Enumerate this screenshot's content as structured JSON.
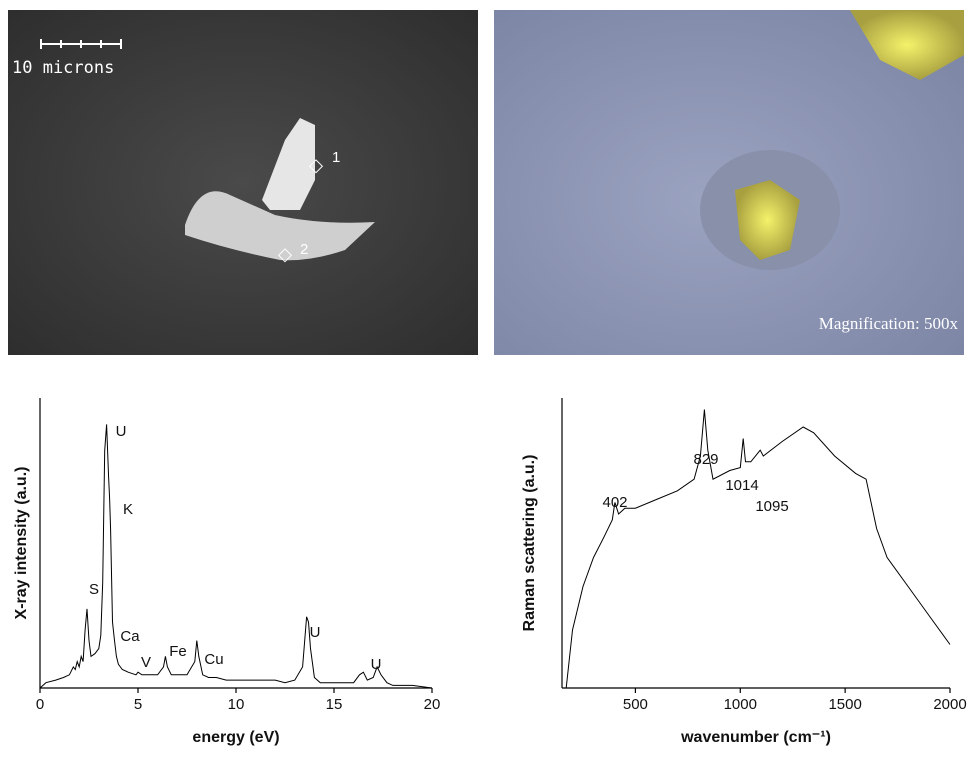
{
  "images": {
    "left": {
      "scale_label": "10 microns",
      "points": [
        "1",
        "2"
      ]
    },
    "right": {
      "caption": "Magnification: 500x"
    }
  },
  "chart_data": [
    {
      "type": "line",
      "y_label": "X-ray intensity (a.u.)",
      "x_label": "energy (eV)",
      "xlim": [
        0,
        20
      ],
      "xticks": [
        0,
        5,
        10,
        15,
        20
      ],
      "ylim": [
        0,
        110
      ],
      "color": "#000000",
      "annotations": [
        "U",
        "K",
        "S",
        "Ca",
        "V",
        "Fe",
        "Cu",
        "U",
        "U"
      ],
      "x": [
        0,
        0.3,
        0.8,
        1.2,
        1.5,
        1.7,
        1.8,
        1.9,
        2.0,
        2.1,
        2.2,
        2.3,
        2.4,
        2.5,
        2.6,
        2.8,
        3.0,
        3.1,
        3.2,
        3.3,
        3.4,
        3.5,
        3.55,
        3.6,
        3.7,
        3.8,
        3.9,
        4.0,
        4.2,
        4.5,
        4.9,
        5.0,
        5.2,
        5.6,
        6.0,
        6.3,
        6.4,
        6.5,
        6.7,
        7.0,
        7.5,
        7.9,
        8.0,
        8.1,
        8.3,
        8.6,
        9.0,
        9.5,
        10,
        11,
        11.5,
        12,
        12.5,
        13,
        13.4,
        13.6,
        13.7,
        13.8,
        14.0,
        14.3,
        15,
        16,
        16.3,
        16.5,
        16.7,
        17,
        17.2,
        17.4,
        17.7,
        18,
        19,
        20
      ],
      "values": [
        0,
        2,
        3,
        4,
        5,
        8,
        7,
        10,
        8,
        12,
        10,
        22,
        30,
        18,
        12,
        13,
        15,
        20,
        40,
        90,
        100,
        80,
        72,
        60,
        25,
        18,
        12,
        9,
        7,
        6,
        5,
        6,
        5,
        5,
        5,
        8,
        12,
        8,
        5,
        5,
        5,
        10,
        18,
        12,
        5,
        4,
        4,
        3,
        3,
        3,
        3,
        3,
        2,
        3,
        8,
        27,
        25,
        15,
        4,
        2,
        2,
        2,
        5,
        6,
        3,
        4,
        8,
        5,
        2,
        1,
        1,
        0
      ]
    },
    {
      "type": "line",
      "y_label": "Raman scattering (a.u.)",
      "x_label": "wavenumber (cm⁻¹)",
      "xlim": [
        150,
        2000
      ],
      "xticks": [
        500,
        1000,
        1500,
        2000
      ],
      "ylim": [
        0,
        100
      ],
      "color": "#000000",
      "annotations": [
        "402",
        "829",
        "1014",
        "1095"
      ],
      "x": [
        170,
        200,
        250,
        300,
        350,
        390,
        402,
        420,
        450,
        500,
        600,
        700,
        780,
        810,
        829,
        845,
        870,
        950,
        1000,
        1014,
        1025,
        1050,
        1095,
        1110,
        1200,
        1300,
        1350,
        1450,
        1550,
        1600,
        1650,
        1700,
        1800,
        1900,
        2000
      ],
      "values": [
        0,
        20,
        35,
        45,
        52,
        58,
        64,
        60,
        62,
        62,
        65,
        68,
        72,
        80,
        96,
        82,
        72,
        75,
        76,
        86,
        78,
        78,
        82,
        80,
        85,
        90,
        88,
        80,
        74,
        72,
        55,
        45,
        35,
        25,
        15
      ]
    }
  ]
}
